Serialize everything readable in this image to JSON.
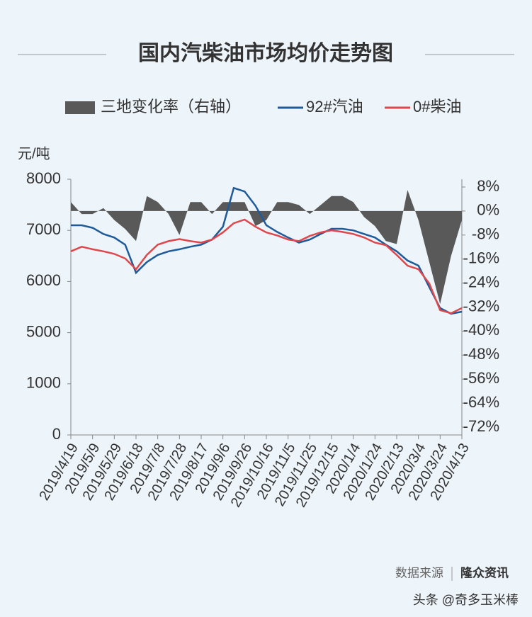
{
  "chart_data": {
    "type": "line",
    "title": "国内汽柴油市场均价走势图",
    "y_label": "元/吨",
    "source_label": "数据来源",
    "source": "隆众资讯",
    "credit": "头条 @奇多玉米棒",
    "x": [
      "2019/4/19",
      "2019/4/29",
      "2019/5/9",
      "2019/5/19",
      "2019/5/29",
      "2019/6/8",
      "2019/6/18",
      "2019/6/28",
      "2019/7/8",
      "2019/7/18",
      "2019/7/28",
      "2019/8/7",
      "2019/8/17",
      "2019/8/27",
      "2019/9/6",
      "2019/9/16",
      "2019/9/26",
      "2019/10/6",
      "2019/10/16",
      "2019/10/26",
      "2019/11/5",
      "2019/11/15",
      "2019/11/25",
      "2019/12/5",
      "2019/12/15",
      "2019/12/25",
      "2020/1/4",
      "2020/1/14",
      "2020/1/24",
      "2020/2/3",
      "2020/2/13",
      "2020/2/23",
      "2020/3/4",
      "2020/3/14",
      "2020/3/24",
      "2020/4/3",
      "2020/4/13"
    ],
    "xticks": [
      "2019/4/19",
      "2019/5/9",
      "2019/5/29",
      "2019/6/18",
      "2019/7/8",
      "2019/7/28",
      "2019/8/17",
      "2019/9/6",
      "2019/9/26",
      "2019/10/16",
      "2019/11/5",
      "2019/11/25",
      "2019/12/15",
      "2020/1/4",
      "2020/1/24",
      "2020/2/13",
      "2020/3/4",
      "2020/3/24",
      "2020/4/13"
    ],
    "ylim": [
      0,
      8000
    ],
    "yticks": [
      0,
      1000,
      5000,
      6000,
      7000,
      8000
    ],
    "y_scale": "broken",
    "y2lim": [
      -72,
      8
    ],
    "y2ticks": [
      {
        "value": 8,
        "label": "8%"
      },
      {
        "value": 0,
        "label": "0%"
      },
      {
        "value": -8,
        "label": "-8%"
      },
      {
        "value": -16,
        "label": "-16%"
      },
      {
        "value": -24,
        "label": "-24%"
      },
      {
        "value": -32,
        "label": "-32%"
      },
      {
        "value": -40,
        "label": "-40%"
      },
      {
        "value": -48,
        "label": "-48%"
      },
      {
        "value": -56,
        "label": "-56%"
      },
      {
        "value": -64,
        "label": "-64%"
      },
      {
        "value": -72,
        "label": "-72%"
      }
    ],
    "series": [
      {
        "name": "三地变化率（右轴）",
        "type": "area",
        "color": "#595959",
        "axis": "y2",
        "values": [
          3,
          -1,
          -1,
          1,
          -3,
          -6,
          -10,
          5,
          3,
          -1,
          -8,
          3,
          3,
          -1,
          3,
          3,
          3,
          -5,
          -3,
          3,
          3,
          2,
          -1,
          2,
          5,
          5,
          3,
          -2,
          -5,
          -10,
          -11,
          7,
          -3,
          -17,
          -31,
          -15,
          -3
        ]
      },
      {
        "name": "92#汽油",
        "type": "line",
        "color": "#1f5a99",
        "values": [
          7100,
          7100,
          7050,
          6930,
          6860,
          6720,
          6170,
          6380,
          6520,
          6590,
          6630,
          6680,
          6720,
          6820,
          7070,
          7830,
          7760,
          7480,
          7100,
          6970,
          6860,
          6760,
          6820,
          6930,
          7030,
          7030,
          7000,
          6930,
          6860,
          6720,
          6590,
          6410,
          6310,
          5890,
          5480,
          5370,
          5410
        ]
      },
      {
        "name": "0#柴油",
        "type": "line",
        "color": "#e0474c",
        "values": [
          6590,
          6680,
          6630,
          6590,
          6540,
          6450,
          6240,
          6520,
          6720,
          6790,
          6830,
          6790,
          6760,
          6820,
          6960,
          7140,
          7210,
          7070,
          6960,
          6900,
          6820,
          6790,
          6890,
          6960,
          7000,
          6970,
          6930,
          6860,
          6760,
          6710,
          6520,
          6310,
          6240,
          5960,
          5440,
          5380,
          5480
        ]
      }
    ]
  }
}
